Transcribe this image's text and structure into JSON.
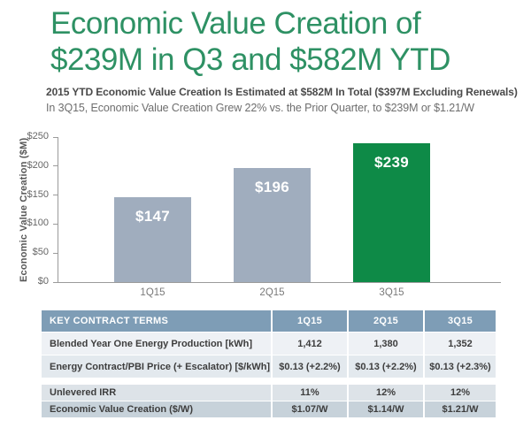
{
  "page": {
    "title_line1": "Economic Value Creation of",
    "title_line2": "$239M in Q3 and $582M YTD",
    "subtitle_bold": "2015 YTD Economic Value Creation Is Estimated at $582M In Total ($397M Excluding Renewals)",
    "subtitle_regular": "In 3Q15, Economic Value Creation Grew 22% vs. the Prior Quarter, to $239M or $1.21/W"
  },
  "chart_data": {
    "type": "bar",
    "categories": [
      "1Q15",
      "2Q15",
      "3Q15"
    ],
    "values": [
      147,
      196,
      239
    ],
    "value_labels": [
      "$147",
      "$196",
      "$239"
    ],
    "bar_colors": [
      "#a0adbe",
      "#a0adbe",
      "#0e8a47"
    ],
    "title": "",
    "xlabel": "",
    "ylabel": "Economic Value Creation ($M)",
    "ylim": [
      0,
      250
    ],
    "ytick_interval": 50,
    "ytick_labels": [
      "$0",
      "$50",
      "$100",
      "$150",
      "$200",
      "$250"
    ],
    "grid": false,
    "legend": "none"
  },
  "table": {
    "header": [
      "KEY CONTRACT TERMS",
      "1Q15",
      "2Q15",
      "3Q15"
    ],
    "header_bg": "#7e9db6",
    "row_colors": [
      [
        "#eef1f5",
        "#e3e9ee"
      ],
      [
        "#dde3e8",
        "#c7d2da"
      ]
    ],
    "sections": [
      {
        "rows": [
          {
            "label": "Blended Year One Energy Production [kWh]",
            "values": [
              "1,412",
              "1,380",
              "1,352"
            ]
          },
          {
            "label": "Energy Contract/PBI Price (+ Escalator) [$/kWh]",
            "values": [
              "$0.13 (+2.2%)",
              "$0.13 (+2.2%)",
              "$0.13 (+2.3%)"
            ]
          }
        ]
      },
      {
        "rows": [
          {
            "label": "Unlevered IRR",
            "values": [
              "11%",
              "12%",
              "12%"
            ]
          },
          {
            "label": "Economic Value Creation ($/W)",
            "values": [
              "$1.07/W",
              "$1.14/W",
              "$1.21/W"
            ]
          }
        ]
      }
    ]
  },
  "colors": {
    "title_green": "#2e9164",
    "bar_gray": "#a0adbe",
    "bar_green": "#0e8a47",
    "table_header_bg": "#7e9db6",
    "axis_gray": "#9b9b9b"
  }
}
